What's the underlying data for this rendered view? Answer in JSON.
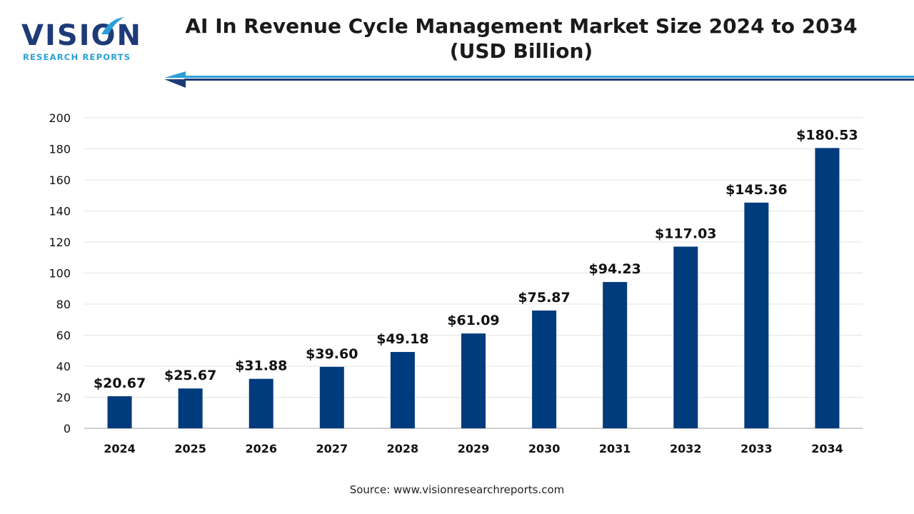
{
  "brand": {
    "name": "VISION",
    "tagline": "RESEARCH REPORTS",
    "color_primary": "#1d3b78",
    "color_accent": "#2a9fd8"
  },
  "header": {
    "title_line1": "AI In Revenue Cycle Management Market Size 2024 to 2034",
    "title_line2": "(USD Billion)"
  },
  "footer": {
    "source": "Source: www.visionresearchreports.com"
  },
  "chart_data": {
    "type": "bar",
    "title": "AI In Revenue Cycle Management Market Size 2024 to 2034 (USD Billion)",
    "categories": [
      "2024",
      "2025",
      "2026",
      "2027",
      "2028",
      "2029",
      "2030",
      "2031",
      "2032",
      "2033",
      "2034"
    ],
    "values": [
      20.67,
      25.67,
      31.88,
      39.6,
      49.18,
      61.09,
      75.87,
      94.23,
      117.03,
      145.36,
      180.53
    ],
    "value_labels": [
      "$20.67",
      "$25.67",
      "$31.88",
      "$39.60",
      "$49.18",
      "$61.09",
      "$75.87",
      "$94.23",
      "$117.03",
      "$145.36",
      "$180.53"
    ],
    "xlabel": "",
    "ylabel": "",
    "ylim": [
      0,
      200
    ],
    "yticks": [
      0,
      20,
      40,
      60,
      80,
      100,
      120,
      140,
      160,
      180,
      200
    ],
    "grid": true,
    "legend": "none",
    "bar_color": "#003b7d"
  }
}
